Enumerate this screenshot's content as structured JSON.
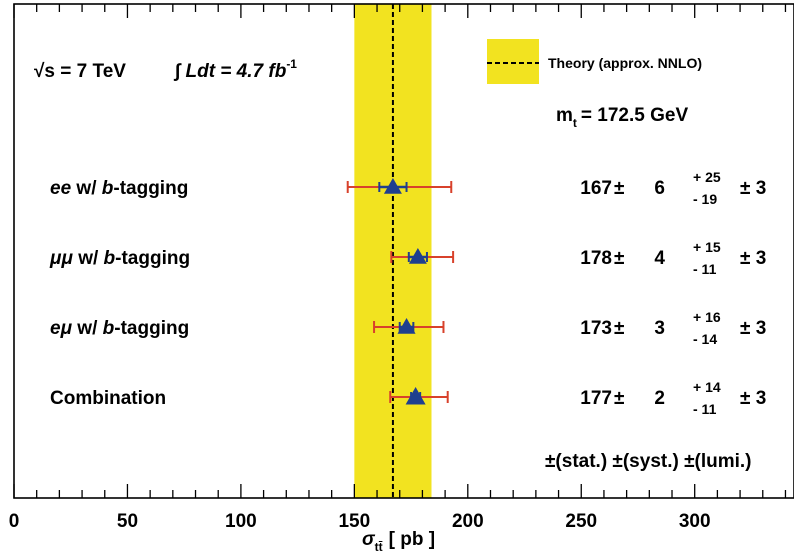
{
  "chart_data": {
    "type": "scatter",
    "orientation": "horizontal",
    "xlabel_main": "σ",
    "xlabel_sub": "tt̄",
    "xlabel_unit": "[ pb ]",
    "xlim": [
      0,
      340
    ],
    "xticks": [
      0,
      50,
      100,
      150,
      200,
      250,
      300
    ],
    "xtick_labels": [
      "0",
      "50",
      "100",
      "150",
      "200",
      "250",
      "300"
    ],
    "energy_label": "√s = 7 TeV",
    "lumi_label": "∫ Ldt = 4.7 fb",
    "lumi_exp": "-1",
    "legend_label": "Theory (approx. NNLO)",
    "mass_label": "m",
    "mass_sub": "t",
    "mass_value": "= 172.5 GeV",
    "theory": {
      "central": 167,
      "band_low": 150,
      "band_high": 184
    },
    "colors": {
      "band": "#f2e320",
      "marker": "#1f3f8f",
      "errorbar": "#d8412b",
      "theory_line": "#000000"
    },
    "footer": "±(stat.) ±(syst.) ±(lumi.)",
    "measurements": [
      {
        "label_parts": [
          {
            "t": "ee",
            "i": true
          },
          {
            "t": " w/ ",
            "i": false
          },
          {
            "t": "b",
            "i": true
          },
          {
            "t": "-tagging",
            "i": false
          }
        ],
        "value": 167,
        "stat": 6,
        "syst_up": 25,
        "syst_down": 19,
        "lumi": 3,
        "value_text": "167",
        "stat_text": "6",
        "syst_up_text": "+ 25",
        "syst_down_text": "- 19",
        "lumi_text": "± 3"
      },
      {
        "label_parts": [
          {
            "t": "μμ",
            "i": true
          },
          {
            "t": " w/ ",
            "i": false
          },
          {
            "t": "b",
            "i": true
          },
          {
            "t": "-tagging",
            "i": false
          }
        ],
        "value": 178,
        "stat": 4,
        "syst_up": 15,
        "syst_down": 11,
        "lumi": 3,
        "value_text": "178",
        "stat_text": "4",
        "syst_up_text": "+ 15",
        "syst_down_text": "- 11",
        "lumi_text": "± 3"
      },
      {
        "label_parts": [
          {
            "t": "eμ",
            "i": true
          },
          {
            "t": " w/ ",
            "i": false
          },
          {
            "t": "b",
            "i": true
          },
          {
            "t": "-tagging",
            "i": false
          }
        ],
        "value": 173,
        "stat": 3,
        "syst_up": 16,
        "syst_down": 14,
        "lumi": 3,
        "value_text": "173",
        "stat_text": "3",
        "syst_up_text": "+ 16",
        "syst_down_text": "- 14",
        "lumi_text": "± 3"
      },
      {
        "label_parts": [
          {
            "t": "Combination",
            "i": false
          }
        ],
        "value": 177,
        "stat": 2,
        "syst_up": 14,
        "syst_down": 11,
        "lumi": 3,
        "value_text": "177",
        "stat_text": "2",
        "syst_up_text": "+ 14",
        "syst_down_text": "- 11",
        "lumi_text": "± 3"
      }
    ]
  }
}
